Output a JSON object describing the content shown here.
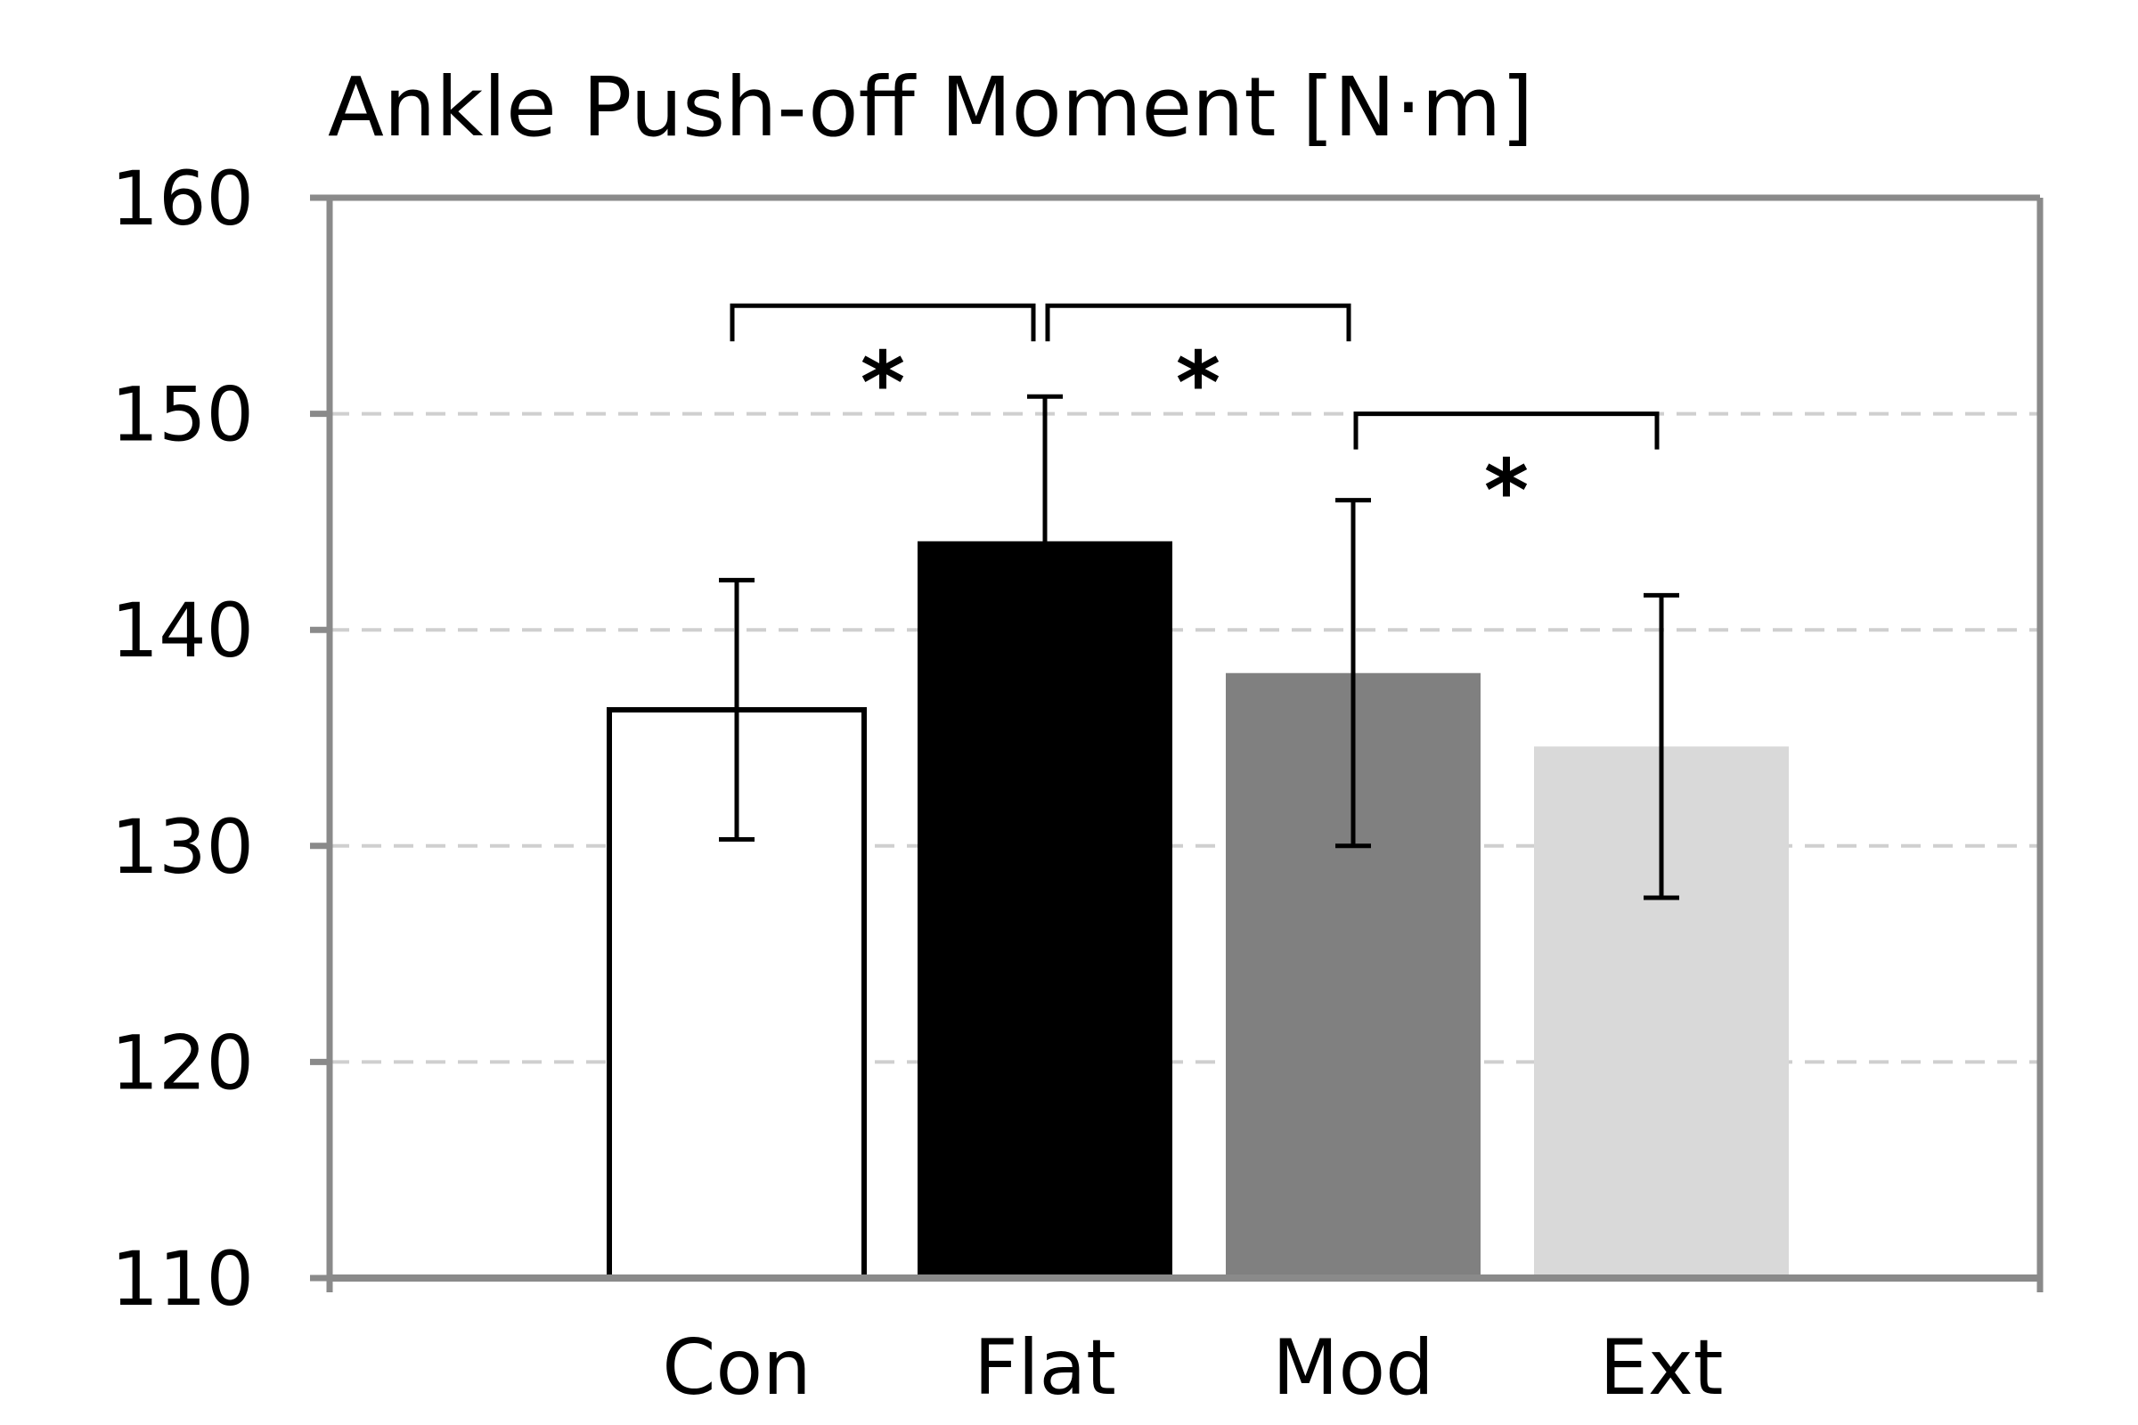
{
  "chart_data": {
    "type": "bar",
    "title": "Ankle Push-off Moment [N·m]",
    "categories": [
      "Con",
      "Flat",
      "Mod",
      "Ext"
    ],
    "values": [
      136.3,
      144.1,
      138.0,
      134.6
    ],
    "error": [
      6.0,
      6.7,
      8.0,
      7.0
    ],
    "colors": [
      "#ffffff",
      "#000000",
      "#808080",
      "#d9d9d9"
    ],
    "ylim": [
      110,
      160
    ],
    "yticks": [
      110,
      120,
      130,
      140,
      150,
      160
    ],
    "ytick_labels": [
      "110",
      "120",
      "130",
      "140",
      "150",
      "160"
    ],
    "grid": true,
    "legend": "none",
    "significance": [
      {
        "from": "Con",
        "to": "Flat",
        "level": 155,
        "label": "*"
      },
      {
        "from": "Flat",
        "to": "Mod",
        "level": 155,
        "label": "*"
      },
      {
        "from": "Mod",
        "to": "Ext",
        "level": 150,
        "label": "*"
      }
    ]
  }
}
